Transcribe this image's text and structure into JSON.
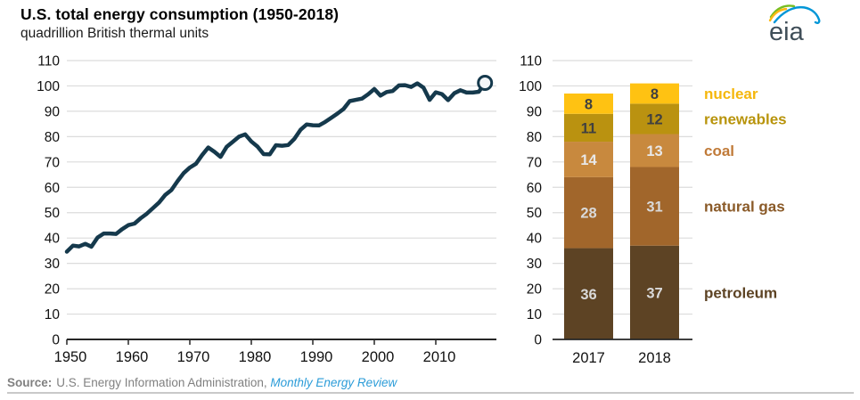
{
  "header": {
    "title": "U.S. total energy consumption (1950-2018)",
    "subtitle": "quadrillion British thermal units",
    "logo_text": "eia"
  },
  "colors": {
    "line": "#15394C",
    "grid": "#DCDCDC",
    "axis_dark": "#262626",
    "tick_label": "#111111",
    "marker_fill": "#F3F6F8",
    "logo_text": "#3F4E58",
    "logo_green": "#78BE20",
    "logo_yellow": "#FDB813",
    "logo_blue": "#0096D7",
    "source_gray": "#808080",
    "link_blue": "#2B9CD8"
  },
  "chart_data": [
    {
      "type": "line",
      "name": "total-energy-consumption-line",
      "title": "U.S. total energy consumption (1950-2018)",
      "ylabel": "quadrillion British thermal units",
      "ylim": [
        0,
        110
      ],
      "yticks": [
        0,
        10,
        20,
        30,
        40,
        50,
        60,
        70,
        80,
        90,
        100,
        110
      ],
      "xticks": [
        1950,
        1960,
        1970,
        1980,
        1990,
        2000,
        2010
      ],
      "grid": true,
      "end_marker": "open-circle",
      "x": [
        1950,
        1951,
        1952,
        1953,
        1954,
        1955,
        1956,
        1957,
        1958,
        1959,
        1960,
        1961,
        1962,
        1963,
        1964,
        1965,
        1966,
        1967,
        1968,
        1969,
        1970,
        1971,
        1972,
        1973,
        1974,
        1975,
        1976,
        1977,
        1978,
        1979,
        1980,
        1981,
        1982,
        1983,
        1984,
        1985,
        1986,
        1987,
        1988,
        1989,
        1990,
        1991,
        1992,
        1993,
        1994,
        1995,
        1996,
        1997,
        1998,
        1999,
        2000,
        2001,
        2002,
        2003,
        2004,
        2005,
        2006,
        2007,
        2008,
        2009,
        2010,
        2011,
        2012,
        2013,
        2014,
        2015,
        2016,
        2017,
        2018
      ],
      "y": [
        34.6,
        37.0,
        36.7,
        37.7,
        36.6,
        40.2,
        41.8,
        41.8,
        41.6,
        43.5,
        45.1,
        45.7,
        47.8,
        49.6,
        51.8,
        54.0,
        57.0,
        58.9,
        62.4,
        65.6,
        67.8,
        69.3,
        72.7,
        75.7,
        74.0,
        72.0,
        76.0,
        78.0,
        80.0,
        80.9,
        78.1,
        76.1,
        73.1,
        73.0,
        76.6,
        76.4,
        76.7,
        79.1,
        82.7,
        84.8,
        84.5,
        84.4,
        85.8,
        87.4,
        89.1,
        90.9,
        94.0,
        94.5,
        95.0,
        96.7,
        98.8,
        96.2,
        97.6,
        98.0,
        100.2,
        100.3,
        99.6,
        101.0,
        99.3,
        94.5,
        97.5,
        96.8,
        94.4,
        97.1,
        98.3,
        97.4,
        97.4,
        97.7,
        101.2
      ]
    },
    {
      "type": "stacked-bar",
      "name": "fuel-mix-stacked-bars",
      "categories": [
        "2017",
        "2018"
      ],
      "ylim": [
        0,
        110
      ],
      "yticks": [
        0,
        10,
        20,
        30,
        40,
        50,
        60,
        70,
        80,
        90,
        100,
        110
      ],
      "grid": true,
      "legend_position": "right",
      "series": [
        {
          "name": "petroleum",
          "values": [
            36,
            37
          ],
          "color": "#5D4324",
          "value_text_color": "#D9D9D9",
          "label_color": "#5D4324"
        },
        {
          "name": "natural gas",
          "values": [
            28,
            31
          ],
          "color": "#A1662B",
          "value_text_color": "#D9D9D9",
          "label_color": "#8A5A28"
        },
        {
          "name": "coal",
          "values": [
            14,
            13
          ],
          "color": "#C8893E",
          "value_text_color": "#E8E8E8",
          "label_color": "#C07A38"
        },
        {
          "name": "renewables",
          "values": [
            11,
            12
          ],
          "color": "#BA9210",
          "value_text_color": "#404040",
          "label_color": "#B8940C"
        },
        {
          "name": "nuclear",
          "values": [
            8,
            8
          ],
          "color": "#FFC212",
          "value_text_color": "#404040",
          "label_color": "#F5B70D"
        }
      ]
    }
  ],
  "source": {
    "label": "Source:",
    "text": "U.S. Energy Information Administration,",
    "link": "Monthly Energy Review"
  }
}
